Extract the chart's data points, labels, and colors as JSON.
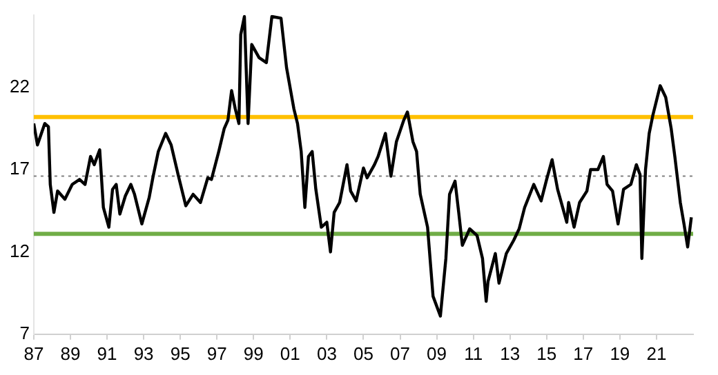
{
  "chart_data": {
    "type": "line",
    "xlim": [
      1987,
      2023
    ],
    "ylim": [
      7,
      26.4
    ],
    "xticks": [
      {
        "value": 1987,
        "label": "87"
      },
      {
        "value": 1989,
        "label": "89"
      },
      {
        "value": 1991,
        "label": "91"
      },
      {
        "value": 1993,
        "label": "93"
      },
      {
        "value": 1995,
        "label": "95"
      },
      {
        "value": 1997,
        "label": "97"
      },
      {
        "value": 1999,
        "label": "99"
      },
      {
        "value": 2001,
        "label": "01"
      },
      {
        "value": 2003,
        "label": "03"
      },
      {
        "value": 2005,
        "label": "05"
      },
      {
        "value": 2007,
        "label": "07"
      },
      {
        "value": 2009,
        "label": "09"
      },
      {
        "value": 2011,
        "label": "11"
      },
      {
        "value": 2013,
        "label": "13"
      },
      {
        "value": 2015,
        "label": "15"
      },
      {
        "value": 2017,
        "label": "17"
      },
      {
        "value": 2019,
        "label": "19"
      },
      {
        "value": 2021,
        "label": "21"
      }
    ],
    "yticks": [
      7,
      12,
      17,
      22
    ],
    "grid": false,
    "legend": false,
    "marker": "none",
    "line_style": "solid",
    "series": [
      {
        "color": "#000000",
        "x": [
          1987.0,
          1987.2,
          1987.6,
          1987.8,
          1987.9,
          1988.1,
          1988.3,
          1988.7,
          1989.1,
          1989.5,
          1989.8,
          1990.1,
          1990.3,
          1990.6,
          1990.8,
          1991.1,
          1991.3,
          1991.5,
          1991.7,
          1992.0,
          1992.3,
          1992.5,
          1992.9,
          1993.3,
          1993.5,
          1993.8,
          1994.2,
          1994.5,
          1994.9,
          1995.3,
          1995.7,
          1996.1,
          1996.5,
          1996.7,
          1997.1,
          1997.4,
          1997.6,
          1997.8,
          1998.0,
          1998.2,
          1998.3,
          1998.5,
          1998.7,
          1998.9,
          1999.3,
          1999.7,
          2000.0,
          2000.5,
          2000.8,
          2001.2,
          2001.4,
          2001.6,
          2001.8,
          2002.0,
          2002.2,
          2002.4,
          2002.7,
          2003.0,
          2003.2,
          2003.4,
          2003.7,
          2004.1,
          2004.3,
          2004.6,
          2005.0,
          2005.2,
          2005.6,
          2005.8,
          2006.2,
          2006.5,
          2006.8,
          2007.2,
          2007.4,
          2007.7,
          2007.9,
          2008.1,
          2008.5,
          2008.8,
          2009.2,
          2009.5,
          2009.7,
          2010.0,
          2010.2,
          2010.4,
          2010.8,
          2011.2,
          2011.5,
          2011.7,
          2011.8,
          2012.2,
          2012.4,
          2012.8,
          2013.2,
          2013.5,
          2013.8,
          2014.3,
          2014.7,
          2015.0,
          2015.3,
          2015.6,
          2016.1,
          2016.2,
          2016.5,
          2016.8,
          2017.2,
          2017.4,
          2017.8,
          2018.1,
          2018.3,
          2018.6,
          2018.9,
          2019.2,
          2019.6,
          2019.9,
          2020.1,
          2020.2,
          2020.4,
          2020.6,
          2020.8,
          2021.2,
          2021.5,
          2021.8,
          2022.0,
          2022.3,
          2022.5,
          2022.7,
          2022.9
        ],
        "values": [
          19.8,
          18.5,
          19.8,
          19.6,
          16.1,
          14.4,
          15.7,
          15.2,
          16.1,
          16.4,
          16.1,
          17.8,
          17.3,
          18.2,
          14.7,
          13.5,
          15.8,
          16.1,
          14.3,
          15.4,
          16.1,
          15.5,
          13.7,
          15.3,
          16.5,
          18.1,
          19.2,
          18.5,
          16.6,
          14.8,
          15.5,
          15.0,
          16.5,
          16.4,
          18.1,
          19.5,
          20.0,
          21.8,
          20.7,
          19.8,
          25.2,
          26.3,
          19.8,
          24.6,
          23.8,
          23.5,
          26.3,
          26.2,
          23.2,
          20.7,
          19.8,
          18.1,
          14.7,
          17.8,
          18.1,
          15.8,
          13.5,
          13.8,
          12.0,
          14.4,
          15.0,
          17.3,
          15.7,
          15.1,
          17.1,
          16.5,
          17.3,
          17.8,
          19.2,
          16.6,
          18.7,
          20.0,
          20.5,
          18.7,
          18.1,
          15.5,
          13.5,
          9.3,
          8.1,
          11.6,
          15.5,
          16.3,
          14.4,
          12.4,
          13.4,
          13.0,
          11.6,
          9.0,
          10.2,
          11.9,
          10.1,
          11.9,
          12.7,
          13.4,
          14.7,
          16.1,
          15.1,
          16.4,
          17.6,
          15.8,
          13.8,
          15.0,
          13.5,
          15.0,
          15.7,
          17.0,
          17.0,
          17.8,
          16.1,
          15.7,
          13.7,
          15.8,
          16.1,
          17.3,
          16.7,
          11.6,
          17.0,
          19.2,
          20.3,
          22.1,
          21.4,
          19.5,
          17.8,
          15.0,
          13.7,
          12.3,
          14.1
        ]
      }
    ],
    "ref_lines": [
      {
        "axis": "y",
        "value": 20.2,
        "color": "#ffc000",
        "line_style": "solid"
      },
      {
        "axis": "y",
        "value": 16.6,
        "color": "#808080",
        "line_style": "dotted"
      },
      {
        "axis": "y",
        "value": 13.1,
        "color": "#70ad47",
        "line_style": "solid"
      }
    ]
  }
}
